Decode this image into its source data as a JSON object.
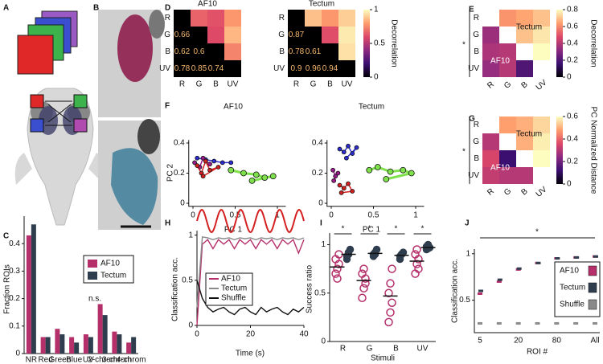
{
  "letters": [
    "A",
    "B",
    "C",
    "D",
    "E",
    "F",
    "G",
    "H",
    "I",
    "J"
  ],
  "C": {
    "type": "bar",
    "ylabel": "Fraction ROIs",
    "annotation": "n.s.",
    "categories": [
      "NR",
      "Red",
      "Green",
      "Blue",
      "UV",
      "2-chrom",
      "3-chrom",
      "4-chrom"
    ],
    "series": [
      {
        "name": "AF10",
        "color": "#b5306a",
        "values": [
          0.43,
          0.06,
          0.09,
          0.06,
          0.07,
          0.18,
          0.08,
          0.04
        ]
      },
      {
        "name": "Tectum",
        "color": "#2f3e4e",
        "values": [
          0.47,
          0.06,
          0.07,
          0.04,
          0.06,
          0.14,
          0.07,
          0.06
        ]
      }
    ],
    "ylim": [
      0,
      0.5
    ],
    "yticks": [
      0,
      0.1,
      0.2,
      0.3,
      0.4
    ]
  },
  "D": {
    "type": "heatmap",
    "colorbar_label": "Decorrelation",
    "clim": [
      0,
      1
    ],
    "cticks": [
      0,
      0.5,
      1
    ],
    "rows": [
      "R",
      "G",
      "B",
      "UV"
    ],
    "matrices": [
      {
        "title": "AF10",
        "values": [
          [
            null,
            null,
            null,
            null
          ],
          [
            0.66,
            null,
            null,
            null
          ],
          [
            0.62,
            0.6,
            null,
            null
          ],
          [
            0.78,
            0.85,
            0.74,
            null
          ]
        ]
      },
      {
        "title": "Tectum",
        "values": [
          [
            null,
            null,
            null,
            null
          ],
          [
            0.87,
            null,
            null,
            null
          ],
          [
            0.78,
            0.61,
            null,
            null
          ],
          [
            0.9,
            0.96,
            0.94,
            null
          ]
        ]
      }
    ]
  },
  "E": {
    "type": "heatmap",
    "star": "*",
    "upper_label": "Tectum",
    "lower_label": "AF10",
    "colorbar_label": "Decorrelation",
    "clim": [
      0,
      0.8
    ],
    "cticks": [
      0,
      0.2,
      0.4,
      0.6,
      0.8
    ],
    "rows": [
      "R",
      "G",
      "B",
      "UV"
    ],
    "values": [
      [
        null,
        0.62,
        0.65,
        0.7
      ],
      [
        0.35,
        null,
        0.7,
        0.76
      ],
      [
        0.38,
        0.4,
        null,
        0.8
      ],
      [
        0.34,
        0.4,
        0.2,
        null
      ]
    ]
  },
  "F": {
    "type": "scatter",
    "xlabel": "PC 1",
    "ylabel": "PC 2",
    "xlim": [
      -0.05,
      1.1
    ],
    "ylim": [
      -0.02,
      0.42
    ],
    "xticks": [
      0,
      0.5,
      1
    ],
    "yticks": [
      0,
      0.2,
      0.4
    ],
    "plots": [
      {
        "title": "AF10",
        "series": [
          {
            "color": "#2b2bd0",
            "x": [
              0.05,
              0.15,
              0.25,
              0.35,
              0.45
            ],
            "y": [
              0.3,
              0.29,
              0.28,
              0.27,
              0.27
            ]
          },
          {
            "color": "#9a1a8a",
            "x": [
              0.02,
              0.08,
              0.12,
              0.2
            ],
            "y": [
              0.27,
              0.24,
              0.3,
              0.26
            ]
          },
          {
            "color": "#d42020",
            "x": [
              0.05,
              0.1,
              0.15,
              0.2,
              0.3,
              0.12
            ],
            "y": [
              0.25,
              0.2,
              0.28,
              0.22,
              0.24,
              0.18
            ]
          },
          {
            "color": "#7ee04a",
            "x": [
              0.45,
              0.6,
              0.75,
              0.85,
              0.95,
              0.7
            ],
            "y": [
              0.22,
              0.2,
              0.19,
              0.17,
              0.18,
              0.15
            ]
          }
        ]
      },
      {
        "title": "Tectum",
        "series": [
          {
            "color": "#2b2bd0",
            "x": [
              0.1,
              0.15,
              0.2,
              0.25,
              0.3,
              0.18
            ],
            "y": [
              0.36,
              0.34,
              0.38,
              0.33,
              0.37,
              0.3
            ]
          },
          {
            "color": "#9a1a8a",
            "x": [
              0.02,
              0.05,
              0.08,
              0.03
            ],
            "y": [
              0.22,
              0.18,
              0.2,
              0.15
            ]
          },
          {
            "color": "#d42020",
            "x": [
              0.1,
              0.15,
              0.2,
              0.25,
              0.12
            ],
            "y": [
              0.12,
              0.1,
              0.13,
              0.08,
              0.07
            ]
          },
          {
            "color": "#7ee04a",
            "x": [
              0.45,
              0.55,
              0.7,
              0.85,
              0.95,
              0.65
            ],
            "y": [
              0.22,
              0.24,
              0.21,
              0.22,
              0.2,
              0.16
            ]
          }
        ]
      }
    ]
  },
  "G": {
    "type": "heatmap",
    "star": "*",
    "upper_label": "Tectum",
    "lower_label": "AF10",
    "colorbar_label": "PC Normalized Distance",
    "clim": [
      0,
      0.6
    ],
    "cticks": [
      0,
      0.2,
      0.4,
      0.6
    ],
    "rows": [
      "R",
      "G",
      "B",
      "UV"
    ],
    "values": [
      [
        null,
        0.48,
        0.5,
        0.55
      ],
      [
        0.3,
        null,
        0.5,
        0.58
      ],
      [
        0.35,
        0.12,
        null,
        0.6
      ],
      [
        0.32,
        0.3,
        0.3,
        null
      ]
    ]
  },
  "H": {
    "type": "line",
    "ylabel": "Classification acc.",
    "xlabel": "Time (s)",
    "x": [
      0,
      2,
      4,
      6,
      8,
      10,
      12,
      14,
      16,
      18,
      20,
      22,
      24,
      26,
      28,
      30,
      32,
      34,
      36,
      38,
      40
    ],
    "series": [
      {
        "name": "AF10",
        "color": "#b5306a",
        "values": [
          0,
          0.9,
          0.95,
          0.85,
          0.95,
          0.9,
          0.95,
          0.85,
          0.95,
          0.9,
          0.95,
          0.85,
          0.95,
          0.9,
          0.95,
          0.85,
          0.95,
          0.9,
          0.95,
          0.8,
          0.95
        ]
      },
      {
        "name": "Tectum",
        "color": "#8a8a8a",
        "values": [
          0.2,
          0.98,
          0.97,
          0.95,
          0.97,
          0.96,
          0.97,
          0.95,
          0.97,
          0.96,
          0.97,
          0.95,
          0.97,
          0.96,
          0.97,
          0.95,
          0.97,
          0.96,
          0.97,
          0.95,
          0.97
        ]
      },
      {
        "name": "Shuffle",
        "color": "#111111",
        "values": [
          0.5,
          0.3,
          0.2,
          0.15,
          0.18,
          0.2,
          0.15,
          0.12,
          0.18,
          0.2,
          0.15,
          0.12,
          0.2,
          0.15,
          0.18,
          0.2,
          0.15,
          0.12,
          0.18,
          0.15,
          0.2
        ]
      }
    ],
    "xlim": [
      0,
      40
    ],
    "ylim": [
      0,
      1.05
    ],
    "xticks": [
      0,
      20,
      40
    ],
    "yticks": [
      0,
      0.5,
      1
    ]
  },
  "I": {
    "type": "dot",
    "ylabel": "Success ratio",
    "xlabel": "Stimuli",
    "categories": [
      "R",
      "G",
      "B",
      "UV"
    ],
    "stars": [
      "*",
      "*",
      "*",
      "*"
    ],
    "series": [
      {
        "name": "AF10",
        "color": "#b5306a",
        "points": [
          [
            0.7,
            0.75,
            0.8,
            0.85,
            0.65,
            0.9
          ],
          [
            0.45,
            0.55,
            0.65,
            0.7,
            0.75,
            0.6
          ],
          [
            0.2,
            0.3,
            0.4,
            0.5,
            0.6,
            0.75
          ],
          [
            0.7,
            0.8,
            0.85,
            0.9,
            0.95,
            0.75
          ]
        ],
        "means": [
          0.77,
          0.63,
          0.47,
          0.83
        ]
      },
      {
        "name": "Tectum",
        "color": "#2f3e4e",
        "points": [
          [
            0.85,
            0.9,
            0.95,
            0.88,
            0.92
          ],
          [
            0.88,
            0.92,
            0.95,
            0.9,
            0.9
          ],
          [
            0.85,
            0.9,
            0.92,
            0.88,
            0.9
          ],
          [
            0.95,
            1,
            0.97,
            0.98,
            0.96
          ]
        ],
        "means": [
          0.9,
          0.91,
          0.89,
          0.97
        ]
      }
    ],
    "ylim": [
      0,
      1.12
    ],
    "yticks": [
      0,
      0.5,
      1
    ]
  },
  "J": {
    "type": "dotline",
    "ylabel": "Classification acc.",
    "xlabel": "ROI #",
    "star": "*",
    "categories": [
      "5",
      null,
      "20",
      null,
      "80",
      null,
      "All"
    ],
    "series": [
      {
        "name": "AF10",
        "color": "#b5306a",
        "values": [
          0.57,
          0.7,
          0.83,
          0.9,
          0.95,
          0.96,
          0.97
        ]
      },
      {
        "name": "Tectum",
        "color": "#2f3e4e",
        "values": [
          0.6,
          0.72,
          0.84,
          0.9,
          0.95,
          0.96,
          0.97
        ]
      },
      {
        "name": "Shuffle",
        "color": "#8a8a8a",
        "values": [
          0.25,
          0.25,
          0.25,
          0.25,
          0.25,
          0.25,
          0.25
        ]
      }
    ],
    "ylim": [
      0.15,
      1.05
    ],
    "yticks": [
      0.5,
      1
    ]
  }
}
